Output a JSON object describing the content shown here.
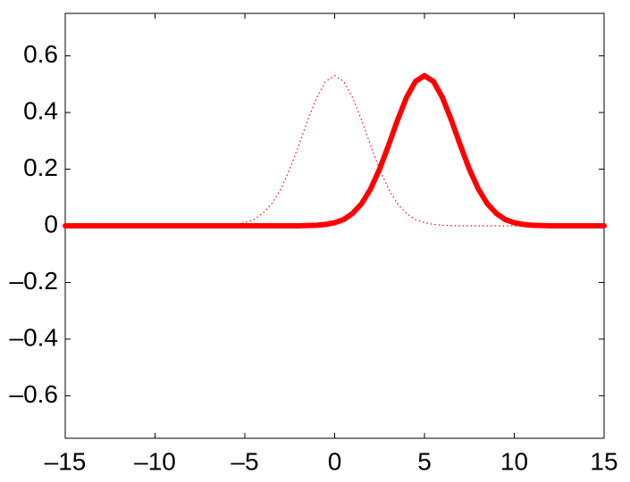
{
  "chart_data": {
    "type": "line",
    "x": [
      -15,
      -14.5,
      -14,
      -13.5,
      -13,
      -12.5,
      -12,
      -11.5,
      -11,
      -10.5,
      -10,
      -9.5,
      -9,
      -8.5,
      -8,
      -7.5,
      -7,
      -6.5,
      -6,
      -5.5,
      -5,
      -4.5,
      -4,
      -3.5,
      -3,
      -2.5,
      -2,
      -1.5,
      -1,
      -0.5,
      0,
      0.5,
      1,
      1.5,
      2,
      2.5,
      3,
      3.5,
      4,
      4.5,
      5,
      5.5,
      6,
      6.5,
      7,
      7.5,
      8,
      8.5,
      9,
      9.5,
      10,
      10.5,
      11,
      11.5,
      12,
      12.5,
      13,
      13.5,
      14,
      14.5,
      15
    ],
    "series": [
      {
        "color": "#ff0000",
        "line_style": "dotted",
        "line_width": 1.2,
        "values": [
          0,
          0,
          0,
          0,
          0,
          0,
          0,
          0,
          0,
          0,
          0,
          0,
          0,
          0,
          0,
          0,
          0,
          0.001,
          0.002,
          0.005,
          0.011,
          0.022,
          0.044,
          0.078,
          0.13,
          0.2,
          0.284,
          0.373,
          0.453,
          0.51,
          0.53,
          0.51,
          0.453,
          0.373,
          0.284,
          0.2,
          0.13,
          0.078,
          0.044,
          0.022,
          0.011,
          0.005,
          0.002,
          0.001,
          0,
          0,
          0,
          0,
          0,
          0,
          0,
          0,
          0,
          0,
          0,
          0,
          0,
          0,
          0,
          0,
          0
        ]
      },
      {
        "color": "#ff0000",
        "line_style": "solid",
        "line_width": 6,
        "values": [
          0,
          0,
          0,
          0,
          0,
          0,
          0,
          0,
          0,
          0,
          0,
          0,
          0,
          0,
          0,
          0,
          0,
          0,
          0,
          0,
          0,
          0,
          0,
          0,
          0,
          0,
          0,
          0.001,
          0.002,
          0.005,
          0.011,
          0.022,
          0.044,
          0.078,
          0.13,
          0.2,
          0.284,
          0.373,
          0.453,
          0.51,
          0.53,
          0.51,
          0.453,
          0.373,
          0.284,
          0.2,
          0.13,
          0.078,
          0.044,
          0.022,
          0.011,
          0.005,
          0.002,
          0.001,
          0,
          0,
          0,
          0,
          0,
          0,
          0
        ]
      }
    ],
    "xlim": [
      -15,
      15
    ],
    "xticks": [
      {
        "value": -15,
        "label": "–15"
      },
      {
        "value": -10,
        "label": "–10"
      },
      {
        "value": -5,
        "label": "–5"
      },
      0,
      5,
      10,
      15
    ],
    "ylim": [
      -0.75,
      0.75
    ],
    "yticks": [
      {
        "value": -0.6,
        "label": "–0.6"
      },
      {
        "value": -0.4,
        "label": "–0.4"
      },
      {
        "value": -0.2,
        "label": "–0.2"
      },
      0,
      0.2,
      0.4,
      0.6
    ],
    "grid": false
  }
}
